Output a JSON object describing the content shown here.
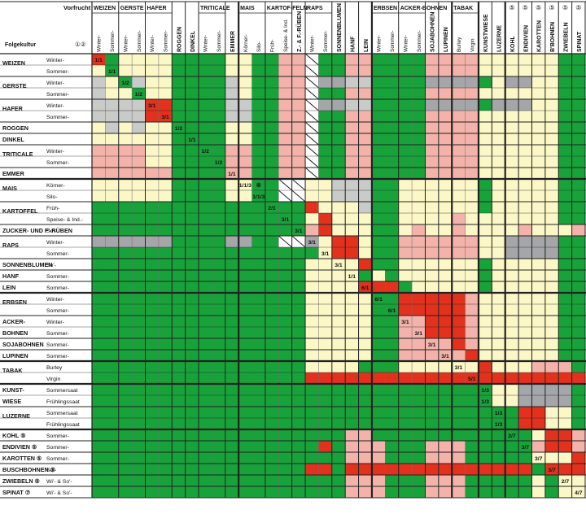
{
  "title": "Vorfrucht",
  "corner_label": "Folgekultur",
  "corner_notes": "①②",
  "groups": [
    {
      "label": "WEIZEN",
      "subs": [
        "Winter-",
        "Sommer-"
      ],
      "sep": false
    },
    {
      "label": "GERSTE",
      "subs": [
        "Winter-",
        "Sommer-"
      ],
      "sep": false
    },
    {
      "label": "HAFER",
      "subs": [
        "Winter-",
        "Sommer-"
      ],
      "sep": false
    },
    {
      "label": "ROGGEN",
      "subs": [],
      "sep": false
    },
    {
      "label": "DINKEL",
      "subs": [],
      "sep": false
    },
    {
      "label": "TRITICALE",
      "subs": [
        "Winter-",
        "Sommer-"
      ],
      "sep": false
    },
    {
      "label": "EMMER",
      "subs": [],
      "sep": true
    },
    {
      "label": "MAIS",
      "subs": [
        "Körner-",
        "Silo-"
      ],
      "sep": false
    },
    {
      "label": "KARTOF-FELN",
      "subs": [
        "Früh-",
        "Speise- & Ind."
      ],
      "sep": false
    },
    {
      "label": "Z.- & F.-RÜBEN",
      "subs": [],
      "sep": false
    },
    {
      "label": "RAPS",
      "subs": [
        "Winter-",
        "Sommer-"
      ],
      "sep": false
    },
    {
      "label": "SONNENBLUMEN",
      "subs": [],
      "sep": false
    },
    {
      "label": "HANF",
      "subs": [],
      "sep": false
    },
    {
      "label": "LEIN",
      "subs": [],
      "sep": true
    },
    {
      "label": "ERBSEN",
      "subs": [
        "Winter-",
        "Sommer-"
      ],
      "sep": false
    },
    {
      "label": "ACKER-BOHNEN",
      "subs": [
        "Winter-",
        "Sommer-"
      ],
      "sep": false
    },
    {
      "label": "SOJABOHNEN",
      "subs": [],
      "sep": false
    },
    {
      "label": "LUPINEN",
      "subs": [],
      "sep": true
    },
    {
      "label": "TABAK",
      "subs": [
        "Burley",
        "Virgin"
      ],
      "sep": true
    },
    {
      "label": "KUNSTWIESE",
      "subs": [],
      "sep": false
    },
    {
      "label": "LUZERNE",
      "subs": [],
      "sep": true
    },
    {
      "label": "KOHL",
      "subs": [],
      "note": "⑤",
      "sep": false
    },
    {
      "label": "ENDIVIEN",
      "subs": [],
      "note": "⑤",
      "sep": false
    },
    {
      "label": "KAROTTEN",
      "subs": [],
      "note": "⑤",
      "sep": false
    },
    {
      "label": "B'BOHNEN",
      "subs": [],
      "note": "⑤",
      "sep": false
    },
    {
      "label": "ZWIEBELN",
      "subs": [],
      "note": "⑤",
      "sep": false
    },
    {
      "label": "SPINAT",
      "subs": [],
      "note": "⑤",
      "sep": false
    }
  ],
  "rows": [
    {
      "label": "WEIZEN",
      "sub": "Winter-",
      "h": 14
    },
    {
      "label": "",
      "sub": "Sommer-",
      "h": 14,
      "end": "th"
    },
    {
      "label": "GERSTE",
      "sub": "Winter-",
      "h": 14
    },
    {
      "label": "",
      "sub": "Sommer-",
      "h": 14,
      "end": "th"
    },
    {
      "label": "HAFER",
      "sub": "Winter-",
      "h": 14
    },
    {
      "label": "",
      "sub": "Sommer-",
      "h": 14,
      "end": "th"
    },
    {
      "label": "ROGGEN",
      "sub": "",
      "h": 14,
      "end": "th"
    },
    {
      "label": "DINKEL",
      "sub": "",
      "h": 14,
      "end": "th"
    },
    {
      "label": "TRITICALE",
      "sub": "Winter-",
      "h": 14
    },
    {
      "label": "",
      "sub": "Sommer-",
      "h": 14,
      "end": "th"
    },
    {
      "label": "EMMER",
      "sub": "",
      "h": 14,
      "end": "tk"
    },
    {
      "label": "MAIS",
      "sub": "Körner-",
      "h": 14
    },
    {
      "label": "",
      "sub": "Silo-",
      "h": 14,
      "end": "th"
    },
    {
      "label": "KARTOFFEL",
      "sub": "Früh-",
      "h": 14
    },
    {
      "label": "",
      "sub": "Speise- & Ind.-",
      "h": 14,
      "end": "th"
    },
    {
      "label": "ZUCKER- UND F'-RÜBEN",
      "sub": "So'-",
      "h": 14,
      "end": "th"
    },
    {
      "label": "RAPS",
      "sub": "Winter-",
      "h": 14
    },
    {
      "label": "",
      "sub": "Sommer-",
      "h": 14,
      "end": "th"
    },
    {
      "label": "SONNENBLUMEN",
      "sub": "So'-",
      "h": 14,
      "end": "th"
    },
    {
      "label": "HANF",
      "sub": "Sommer-",
      "h": 14,
      "end": "th"
    },
    {
      "label": "LEIN",
      "sub": "Sommer-",
      "h": 14,
      "end": "tk"
    },
    {
      "label": "ERBSEN",
      "sub": "Winter-",
      "h": 14
    },
    {
      "label": "",
      "sub": "Sommer-",
      "h": 14,
      "end": "th"
    },
    {
      "label": "ACKER-",
      "sub": "Winter-",
      "h": 14
    },
    {
      "label": "BOHNEN",
      "sub": "Sommer-",
      "h": 14,
      "end": "th"
    },
    {
      "label": "SOJABOHNEN",
      "sub": "Sommer-",
      "h": 14,
      "end": "th"
    },
    {
      "label": "LUPINEN",
      "sub": "Sommer-",
      "h": 14,
      "end": "tk"
    },
    {
      "label": "TABAK",
      "sub": "Burley",
      "h": 14
    },
    {
      "label": "",
      "sub": "Virgin",
      "h": 14,
      "end": "tk"
    },
    {
      "label": "KUNST-",
      "sub": "Sommersaat",
      "h": 14
    },
    {
      "label": "WIESE",
      "sub": "Frühlingssaat",
      "h": 14,
      "end": "th"
    },
    {
      "label": "LUZERNE",
      "sub": "Sommersaat",
      "h": 14
    },
    {
      "label": "",
      "sub": "Frühlingssaat",
      "h": 14,
      "end": "tk"
    },
    {
      "label": "KOHL ⑤",
      "sub": "Sommer-",
      "h": 14,
      "end": "th"
    },
    {
      "label": "ENDIVIEN ⑤",
      "sub": "Sommer-",
      "h": 14,
      "end": "th"
    },
    {
      "label": "KAROTTEN ⑤",
      "sub": "Sommer-",
      "h": 14,
      "end": "th"
    },
    {
      "label": "BUSCHBOHNEN ⑤",
      "sub": "So'-",
      "h": 14,
      "end": "th"
    },
    {
      "label": "ZWIEBELN ⑤",
      "sub": "Wi'- & So'-",
      "h": 14,
      "end": "th"
    },
    {
      "label": "SPINAT ⑦",
      "sub": "Wi'- & So'-",
      "h": 14,
      "end": "th"
    }
  ],
  "legend": {
    "G": "#17a33a",
    "Y": "#fbf7c6",
    "P": "#f3b3aa",
    "R": "#e2321e",
    "S": "#c9cbc8",
    "X": "#a5a6a9",
    "W": "#ffffff"
  },
  "matrix": [
    "ROYYYYGGGGYYGGPPWGGPPGGGGPPPPYYYYYYGGGGGGG",
    "YOYYYYGGGGYYGGPPWGGPPGGGGPPPPYYYYYYGGGGGGG",
    "SYOSYYGGGGSYGGPPWXXSSGGGGXXXXGYXXYYGGGGGGG",
    "SYYOYYGGGGSYGGPPWGGPPGGGGPPPPYYYYYYGGGGGGG",
    "SSSSRRGGGGSSGGPPWXXSSGGGGXXXXGXXXYYGGGGGGG",
    "SSSSRRGGGGSSGGPPWGGPPGGGGPPPPYYYYYYGGGGGGG",
    "YSYSYYGGGGYYGGPPWGGPPGGGGPPPPYYYYYYGGGGGGG",
    "YYYYYYGGGGYYGGPPWGGPPGGGGPPPPYYYYYYGGGGGGG",
    "PPPPYYGGGGPPGGPPWGGPPGGGGPPPPYYYYYYGGGGGGG",
    "PPPPYYGGGGPPGGPPWGGPPGGGGPPPPYYYYYYGGGGGGG",
    "PPPPPPGGGGPPGGPPWGGPPGGGGPPPPYYYYYYGGGGGGG",
    "YYYYYYGGGGYYGGWWYYSSSGGYYYYYYGYYYYYGGGGGGG",
    "YYYYYYGGGGYYGGWWYYSSSGGYYYYYYGYYYYYGGGGGGG",
    "GGGGGGGGGGGGGGGGRYYYSGGYYYYYYGYYYYYGGGGGGG",
    "GGGGGGGGGGGGGGGGYRYYYGGYYYYPYYYYYYYGGGGGGG",
    "GGGGGGGGGGGGGGGGPRYYYGGYPYYPYYYYPYYYPPGRPR",
    "XXXXXXGGGGXXGGWWXYRRYGGPPPPPPYYXXXXGGGGGGG",
    "GGGGGGGGGGGGGGGGGYRRYGGPPPPPPYYXXXXGGGGGGG",
    "GGGGGGGGGGGGGGGGYYYYRGGYYYYYYGYYYYYGGGGGGG",
    "GGGGGGGGGGGGGGGGYYYYGYGYYYYYYGYYYYYGGGGGGG",
    "GGGGGGGGGGGGGGGGYYYYRRRGYYYYYGYYYYYGGGGGGG",
    "GGGGGGGGGGGGGGGGYYYYYGGRRRRRPYYYYYYGGGGGGG",
    "GGGGGGGGGGGGGGGGYYYYYGGRRRRRPYYYYYYGGGGGGG",
    "GGGGGGGGGGGGGGGGYYYYYGGPPRRRPYYYYYYGGGGGGG",
    "GGGGGGGGGGGGGGGGYYYYYGGPPRRRPYYYYYYGGGGGGG",
    "GGGGGGGGGGGGGGGGYYYYYGGPPPPRPYYYYYYGGGGGGG",
    "GGGGGGGGGGGGGGGGYYYYYGGPPPPPRYYYYYYGGGGGGG",
    "GGGGGGGGGGGGGGGGYYYYGGGYYYYYYRYYYPPPGGGGGG",
    "GGGGGGGGGGGGGGGGRRRRRRRRRRRRRRRRRRRRRRRRRR",
    "GGGGGGGGGGGGGGGGGGGGGGGGGGGGGGYYXXXXGGGGGG",
    "GGGGGGGGGGGGGGGGGGGGGGGGGGGGGGYYXXXXGGGGGG",
    "GGGGGGGGGGGGGGGGGGGGGGGGGGGGGGGGRRYYGGGGGG",
    "GGGGGGGGGGGGGGGGGGGGGGGGGGGGGGGGRRYYGGGGGG",
    "GGGGGGGGGGGGGGGGGGGPPGGGGGGGGGGGGYRRPGPYYG",
    "GGGGGGGGGGGGGGGGGRGPPPGGGPPPGGGGGPRRPGPYYG",
    "GGGGGGGGGGGGGGGGGGGPPPGGGPPPGGGGGYYYRRYPPG",
    "GGGGGGGGGGGGGGGGRRGRRRRRRRRRRRRRRGRRRRRPPR",
    "GGGGGGGGGGGGGGGGGGGPPPGGGPPPGGGGGYGYYRRPPG",
    "GGGGGGGGGGGGGGGGGGGPPPGGGPPPGGGGGYGYYPRRRR"
  ],
  "cell_labels": [
    {
      "r": 0,
      "c": 0,
      "t": "1/1"
    },
    {
      "r": 1,
      "c": 1,
      "t": "1/1"
    },
    {
      "r": 2,
      "c": 2,
      "t": "1/2"
    },
    {
      "r": 3,
      "c": 3,
      "t": "1/2"
    },
    {
      "r": 4,
      "c": 4,
      "t": "3/1"
    },
    {
      "r": 5,
      "c": 5,
      "t": "3/1"
    },
    {
      "r": 6,
      "c": 6,
      "t": "1/2"
    },
    {
      "r": 7,
      "c": 7,
      "t": "1/1"
    },
    {
      "r": 8,
      "c": 8,
      "t": "1/2"
    },
    {
      "r": 9,
      "c": 9,
      "t": "1/2"
    },
    {
      "r": 10,
      "c": 10,
      "t": "1/1"
    },
    {
      "r": 11,
      "c": 11,
      "t": "1/1/3"
    },
    {
      "r": 12,
      "c": 12,
      "t": "1/1/3"
    },
    {
      "r": 13,
      "c": 13,
      "t": "2/1"
    },
    {
      "r": 14,
      "c": 14,
      "t": "3/1"
    },
    {
      "r": 15,
      "c": 15,
      "t": "3/1"
    },
    {
      "r": 16,
      "c": 16,
      "t": "3/1"
    },
    {
      "r": 17,
      "c": 17,
      "t": "3/1"
    },
    {
      "r": 18,
      "c": 18,
      "t": "3/1"
    },
    {
      "r": 19,
      "c": 19,
      "t": "1/1"
    },
    {
      "r": 20,
      "c": 20,
      "t": "6/1"
    },
    {
      "r": 21,
      "c": 21,
      "t": "6/1"
    },
    {
      "r": 22,
      "c": 22,
      "t": "6/1"
    },
    {
      "r": 23,
      "c": 23,
      "t": "3/1"
    },
    {
      "r": 24,
      "c": 24,
      "t": "3/1"
    },
    {
      "r": 25,
      "c": 25,
      "t": "3/1"
    },
    {
      "r": 26,
      "c": 26,
      "t": "3/1"
    },
    {
      "r": 27,
      "c": 27,
      "t": "3/1"
    },
    {
      "r": 28,
      "c": 28,
      "t": "5/1"
    },
    {
      "r": 29,
      "c": 29,
      "t": "1/3"
    },
    {
      "r": 30,
      "c": 29,
      "t": "1/3"
    },
    {
      "r": 31,
      "c": 30,
      "t": "1/3"
    },
    {
      "r": 32,
      "c": 30,
      "t": "1/3"
    },
    {
      "r": 33,
      "c": 31,
      "t": "2/7"
    },
    {
      "r": 34,
      "c": 32,
      "t": "3/7"
    },
    {
      "r": 35,
      "c": 33,
      "t": "3/7"
    },
    {
      "r": 36,
      "c": 34,
      "t": "3/7"
    },
    {
      "r": 37,
      "c": 35,
      "t": "2/7"
    },
    {
      "r": 38,
      "c": 36,
      "t": "4/7"
    },
    {
      "r": 11,
      "c": 12,
      "t": "④"
    }
  ]
}
